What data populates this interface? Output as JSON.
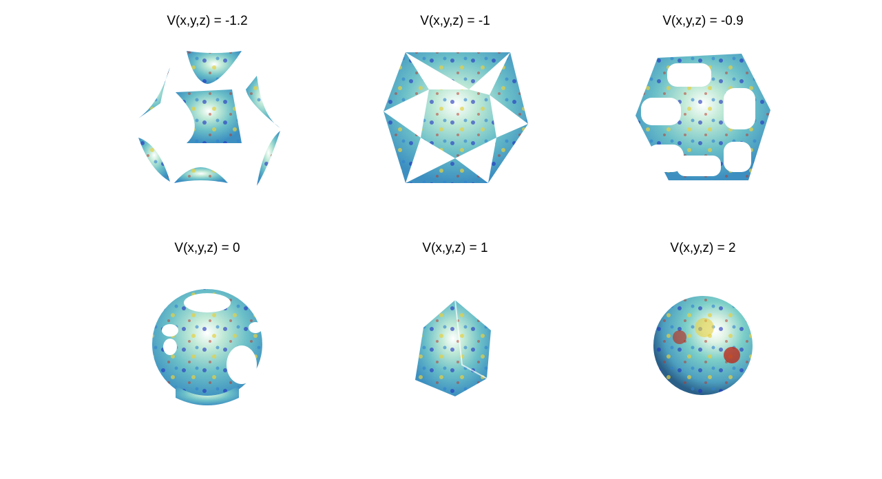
{
  "panels": [
    {
      "title": "V(x,y,z) = -1.2"
    },
    {
      "title": "V(x,y,z) = -1"
    },
    {
      "title": "V(x,y,z) = -0.9"
    },
    {
      "title": "V(x,y,z) = 0"
    },
    {
      "title": "V(x,y,z) = 1"
    },
    {
      "title": "V(x,y,z) = 2"
    }
  ],
  "colors": {
    "surface_base": "#8fd0c8",
    "blue_spot": "#2030c0",
    "red_spot": "#c02010",
    "yellow_spot": "#e6d040",
    "highlight": "#ffffff"
  }
}
